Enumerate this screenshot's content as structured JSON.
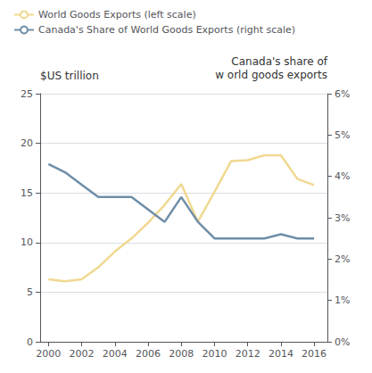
{
  "chart_data": {
    "type": "line",
    "x": [
      2000,
      2001,
      2002,
      2003,
      2004,
      2005,
      2006,
      2007,
      2008,
      2009,
      2010,
      2011,
      2012,
      2013,
      2014,
      2015,
      2016
    ],
    "xlim": [
      1999.5,
      2016.8
    ],
    "xticks": [
      2000,
      2002,
      2004,
      2006,
      2008,
      2010,
      2012,
      2014,
      2016
    ],
    "ylim": [
      0,
      25
    ],
    "yticks": [
      0,
      5,
      10,
      15,
      20,
      25
    ],
    "y2lim": [
      0,
      6
    ],
    "y2ticks": [
      {
        "value": 0,
        "label": "0%"
      },
      {
        "value": 1,
        "label": "1%"
      },
      {
        "value": 2,
        "label": "2%"
      },
      {
        "value": 3,
        "label": "3%"
      },
      {
        "value": 4,
        "label": "4%"
      },
      {
        "value": 5,
        "label": "5%"
      },
      {
        "value": 6,
        "label": "6%"
      }
    ],
    "ylabel": "$US trillion",
    "y2label": "Canada's share of\nw orld goods exports",
    "series": [
      {
        "name": "World Goods Exports (left scale)",
        "color": "#f0d890",
        "values": [
          6.3,
          6.1,
          6.3,
          7.5,
          9.1,
          10.4,
          12.0,
          13.8,
          15.9,
          12.1,
          15.1,
          18.2,
          18.3,
          18.8,
          18.8,
          16.4,
          15.8
        ]
      },
      {
        "name": "Canada's Share of World Goods Exports (right scale)",
        "color": "#6e8ea8",
        "axis": "y2",
        "values": [
          4.3,
          4.1,
          3.8,
          3.5,
          3.5,
          3.5,
          3.2,
          2.9,
          3.5,
          2.9,
          2.5,
          2.5,
          2.5,
          2.5,
          2.6,
          2.5,
          2.5
        ]
      }
    ],
    "grid": true,
    "legend": "upper left"
  }
}
